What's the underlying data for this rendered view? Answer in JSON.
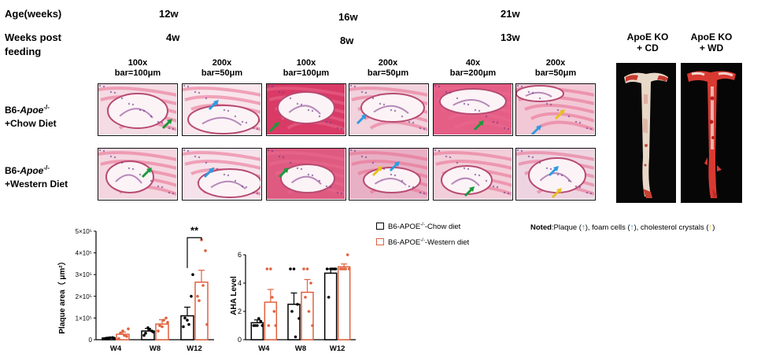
{
  "header": {
    "age_label": "Age(weeks)",
    "weeks_label_1": "Weeks post",
    "weeks_label_2": "feeding",
    "ages": [
      "12w",
      "16w",
      "21w"
    ],
    "weeks_post": [
      "4w",
      "8w",
      "13w"
    ],
    "magnifications": [
      {
        "mag": "100x",
        "bar": "bar=100μm"
      },
      {
        "mag": "200x",
        "bar": "bar=50μm"
      },
      {
        "mag": "100x",
        "bar": "bar=100μm"
      },
      {
        "mag": "200x",
        "bar": "bar=50μm"
      },
      {
        "mag": "40x",
        "bar": "bar=200μm"
      },
      {
        "mag": "200x",
        "bar": "bar=50μm"
      }
    ]
  },
  "rows": [
    {
      "prefix": "B6-",
      "gene": "Apoe",
      "sup": "-/-",
      "diet": "+Chow Diet"
    },
    {
      "prefix": "B6-",
      "gene": "Apoe",
      "sup": "-/-",
      "diet": "+Western Diet"
    }
  ],
  "aorta": {
    "cd_label_1": "ApoE KO",
    "cd_label_2": "+ CD",
    "wd_label_1": "ApoE KO",
    "wd_label_2": "+ WD"
  },
  "legend": {
    "chow": "B6-APOE",
    "chow_sup": "-/-",
    "chow_suffix": "-Chow diet",
    "western": "B6-APOE",
    "western_sup": "-/-",
    "western_suffix": "-Western diet"
  },
  "noted": {
    "bold": "Noted",
    "text1": ":Plaque (",
    "text2": "), foam cells (",
    "text3": "), cholesterol crystals (",
    "text4": ")"
  },
  "colors": {
    "chow": "#000000",
    "western": "#e0623e",
    "green_arrow": "#1a9a3a",
    "blue_arrow": "#2e9be0",
    "yellow_arrow": "#e8c020",
    "tissue_pink": "#e96a8e"
  },
  "chart_data": [
    {
      "type": "bar",
      "title": "",
      "xlabel": "",
      "ylabel": "Plaque area（ μm²）",
      "categories": [
        "W4",
        "W8",
        "W12"
      ],
      "ylim": [
        0,
        500000
      ],
      "yticks": [
        "0",
        "1×10⁵",
        "2×10⁵",
        "3×10⁵",
        "4×10⁵",
        "5×10⁵"
      ],
      "significance": "**",
      "series": [
        {
          "name": "B6-APOE-/--Chow diet",
          "values": [
            8000,
            40000,
            110000
          ],
          "errors": [
            3000,
            12000,
            40000
          ],
          "points": [
            [
              5000,
              8000,
              10000,
              6000,
              9000,
              7000
            ],
            [
              20000,
              55000,
              40000,
              30000,
              45000,
              35000
            ],
            [
              60000,
              90000,
              200000,
              100000,
              70000,
              300000
            ]
          ]
        },
        {
          "name": "B6-APOE-/--Western diet",
          "values": [
            25000,
            72000,
            265000
          ],
          "errors": [
            10000,
            20000,
            55000
          ],
          "points": [
            [
              5000,
              40000,
              15000,
              30000,
              20000,
              50000
            ],
            [
              40000,
              60000,
              100000,
              65000,
              90000,
              80000
            ],
            [
              200000,
              460000,
              410000,
              180000,
              250000,
              70000
            ]
          ]
        }
      ]
    },
    {
      "type": "bar",
      "title": "",
      "xlabel": "",
      "ylabel": "AHA Level",
      "categories": [
        "W4",
        "W8",
        "W12"
      ],
      "ylim": [
        0,
        6
      ],
      "yticks": [
        "0",
        "2",
        "4",
        "6"
      ],
      "series": [
        {
          "name": "B6-APOE-/--Chow diet",
          "values": [
            1.2,
            2.5,
            4.7
          ],
          "errors": [
            0.2,
            0.8,
            0.3
          ],
          "points": [
            [
              1,
              1,
              1.3,
              1,
              1.5,
              1
            ],
            [
              5,
              5,
              2.5,
              2,
              0.2,
              1.5
            ],
            [
              5,
              5,
              5,
              3,
              5,
              5
            ]
          ]
        },
        {
          "name": "B6-APOE-/--Western diet",
          "values": [
            2.65,
            3.35,
            5.15
          ],
          "errors": [
            0.9,
            0.9,
            0.2
          ],
          "points": [
            [
              5,
              5,
              2,
              1,
              3,
              1
            ],
            [
              5,
              5,
              4,
              3,
              2,
              1
            ],
            [
              5,
              5,
              6,
              5,
              5,
              5
            ]
          ]
        }
      ]
    }
  ]
}
